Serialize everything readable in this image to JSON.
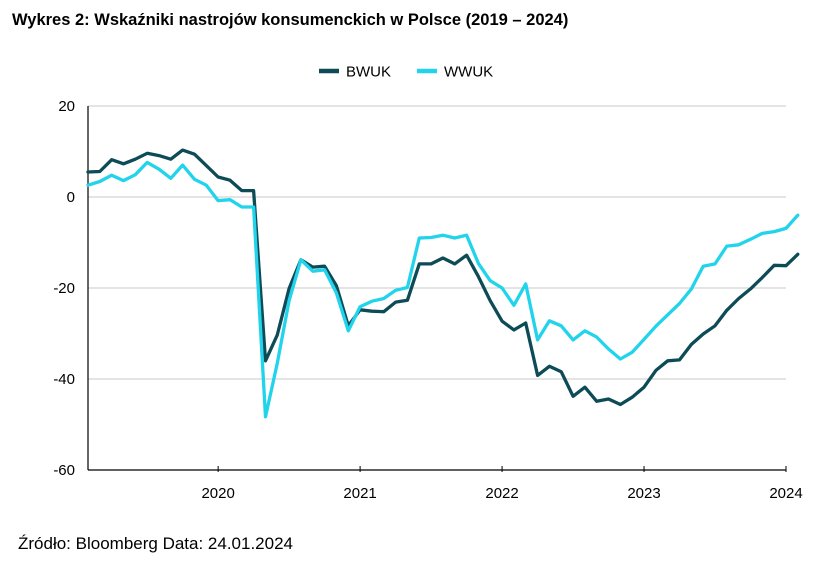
{
  "title": "Wykres 2: Wskaźniki nastrojów konsumenckich w Polsce (2019 – 2024)",
  "source": "Źródło: Bloomberg Data: 24.01.2024",
  "chart_data": {
    "type": "line",
    "title": "Wykres 2: Wskaźniki nastrojów konsumenckich w Polsce (2019 – 2024)",
    "xlabel": "",
    "ylabel": "",
    "x_start": "2019-02",
    "x_frequency": "monthly",
    "xlim": [
      "2019-02",
      "2024-01"
    ],
    "ylim": [
      -60,
      20
    ],
    "y_ticks": [
      20,
      0,
      -20,
      -40,
      -60
    ],
    "y_tick_labels": [
      "20",
      "0",
      "-20",
      "-40",
      "-60"
    ],
    "x_ticks": [
      "2020-01",
      "2021-01",
      "2022-01",
      "2023-01",
      "2024-01"
    ],
    "x_tick_labels": [
      "2020",
      "2021",
      "2022",
      "2023",
      "2024"
    ],
    "grid": "horizontal",
    "legend": "top-center",
    "series": [
      {
        "name": "BWUK",
        "color": "#0d4b57",
        "values": [
          5.5,
          5.6,
          8.2,
          7.3,
          8.3,
          9.6,
          9.1,
          8.3,
          10.3,
          9.4,
          6.9,
          4.4,
          3.7,
          1.4,
          1.4,
          -36.0,
          -30.3,
          -20.1,
          -13.8,
          -15.4,
          -15.2,
          -19.5,
          -28.3,
          -24.8,
          -25.1,
          -25.2,
          -23.1,
          -22.7,
          -14.7,
          -14.7,
          -13.4,
          -14.7,
          -12.8,
          -17.5,
          -22.8,
          -27.3,
          -29.2,
          -27.7,
          -39.2,
          -37.2,
          -38.4,
          -43.8,
          -41.8,
          -44.9,
          -44.4,
          -45.6,
          -44.0,
          -41.8,
          -38.1,
          -36.0,
          -35.8,
          -32.4,
          -30.1,
          -28.3,
          -24.9,
          -22.3,
          -20.2,
          -17.7,
          -15.0,
          -15.1,
          -12.6
        ]
      },
      {
        "name": "WWUK",
        "color": "#22d3ec",
        "values": [
          2.6,
          3.4,
          4.8,
          3.6,
          4.9,
          7.6,
          6.1,
          4.1,
          7.0,
          3.9,
          2.6,
          -0.8,
          -0.6,
          -2.2,
          -2.2,
          -48.3,
          -36.5,
          -22.8,
          -13.8,
          -16.3,
          -16.0,
          -21.1,
          -29.4,
          -24.1,
          -22.9,
          -22.3,
          -20.5,
          -19.9,
          -9.0,
          -8.9,
          -8.4,
          -9.0,
          -8.4,
          -14.6,
          -18.4,
          -20.0,
          -23.8,
          -19.1,
          -31.4,
          -27.2,
          -28.3,
          -31.4,
          -29.4,
          -30.8,
          -33.4,
          -35.6,
          -34.1,
          -31.3,
          -28.4,
          -25.9,
          -23.4,
          -20.2,
          -15.2,
          -14.7,
          -10.8,
          -10.5,
          -9.3,
          -8.0,
          -7.6,
          -6.9,
          -4.0
        ]
      }
    ]
  }
}
